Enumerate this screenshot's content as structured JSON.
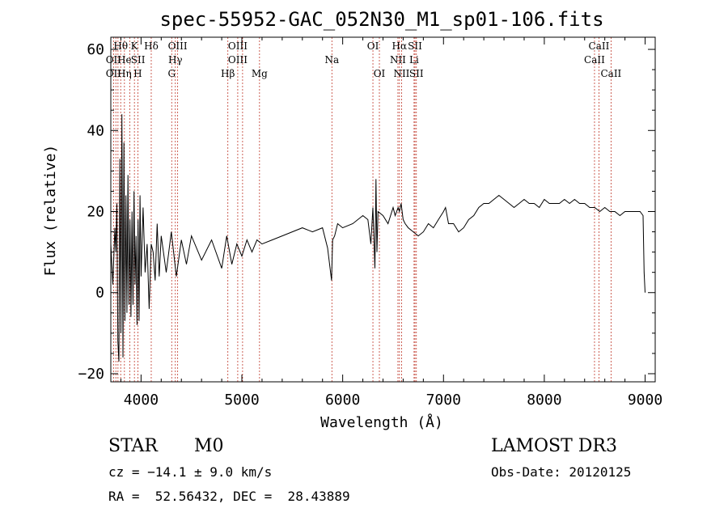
{
  "chart_data": {
    "type": "line",
    "title": "spec-55952-GAC_052N30_M1_sp01-106.fits",
    "xlabel": "Wavelength (Å)",
    "ylabel": "Flux (relative)",
    "xlim": [
      3700,
      9100
    ],
    "ylim": [
      -22,
      63
    ],
    "xticks": [
      4000,
      5000,
      6000,
      7000,
      8000,
      9000
    ],
    "yticks": [
      -20,
      0,
      20,
      40,
      60
    ],
    "xtick_labels": [
      "4000",
      "5000",
      "6000",
      "7000",
      "8000",
      "9000"
    ],
    "ytick_labels": [
      "−20",
      "0",
      "20",
      "40",
      "60"
    ],
    "series": [
      {
        "name": "flux",
        "x": [
          3700,
          3720,
          3740,
          3750,
          3760,
          3770,
          3780,
          3790,
          3800,
          3810,
          3820,
          3830,
          3840,
          3850,
          3860,
          3870,
          3880,
          3890,
          3900,
          3910,
          3920,
          3930,
          3940,
          3950,
          3960,
          3970,
          3980,
          3990,
          4000,
          4020,
          4040,
          4060,
          4080,
          4100,
          4120,
          4140,
          4160,
          4180,
          4200,
          4250,
          4300,
          4350,
          4400,
          4450,
          4500,
          4600,
          4700,
          4800,
          4850,
          4900,
          4950,
          5000,
          5050,
          5100,
          5150,
          5200,
          5300,
          5400,
          5500,
          5600,
          5700,
          5800,
          5850,
          5890,
          5900,
          5920,
          5950,
          6000,
          6100,
          6200,
          6250,
          6280,
          6300,
          6320,
          6330,
          6340,
          6350,
          6400,
          6450,
          6500,
          6520,
          6550,
          6563,
          6580,
          6600,
          6620,
          6650,
          6700,
          6750,
          6800,
          6850,
          6900,
          6950,
          7000,
          7020,
          7050,
          7100,
          7150,
          7200,
          7250,
          7300,
          7350,
          7400,
          7450,
          7500,
          7550,
          7600,
          7650,
          7700,
          7750,
          7800,
          7850,
          7900,
          7950,
          8000,
          8050,
          8100,
          8150,
          8200,
          8250,
          8300,
          8350,
          8400,
          8450,
          8500,
          8550,
          8600,
          8650,
          8700,
          8750,
          8800,
          8850,
          8900,
          8950,
          8980,
          8990,
          9000
        ],
        "values": [
          12,
          2,
          16,
          10,
          22,
          -12,
          -17,
          33,
          -10,
          44,
          -16,
          37,
          -7,
          24,
          -5,
          29,
          -3,
          18,
          -6,
          20,
          -3,
          25,
          2,
          14,
          -8,
          18,
          -7,
          24,
          4,
          21,
          5,
          12,
          -4,
          12,
          10,
          3,
          17,
          4,
          14,
          5,
          15,
          4,
          13,
          7,
          14,
          8,
          13,
          6,
          14,
          7,
          12,
          9,
          13,
          10,
          13,
          12,
          13,
          14,
          15,
          16,
          15,
          16,
          11,
          3,
          13,
          14,
          17,
          16,
          17,
          19,
          18,
          12,
          21,
          6,
          28,
          10,
          20,
          19,
          17,
          21,
          19,
          21,
          20,
          22,
          18,
          17,
          16,
          15,
          14,
          15,
          17,
          16,
          18,
          20,
          21,
          17,
          17,
          15,
          16,
          18,
          19,
          21,
          22,
          22,
          23,
          24,
          23,
          22,
          21,
          22,
          23,
          22,
          22,
          21,
          23,
          22,
          22,
          22,
          23,
          22,
          23,
          22,
          22,
          21,
          21,
          20,
          21,
          20,
          20,
          19,
          20,
          20,
          20,
          20,
          19,
          5,
          0
        ]
      }
    ],
    "line_markers": [
      {
        "label": "OII",
        "wavelength": 3727,
        "row": 2
      },
      {
        "label": "OII",
        "wavelength": 3727,
        "row": 3
      },
      {
        "label": "Hθ",
        "wavelength": 3798,
        "row": 1
      },
      {
        "label": "He",
        "wavelength": 3835,
        "row": 2
      },
      {
        "label": "Hη",
        "wavelength": 3835,
        "row": 3
      },
      {
        "label": "K",
        "wavelength": 3934,
        "row": 1
      },
      {
        "label": "SII",
        "wavelength": 3970,
        "row": 2
      },
      {
        "label": "H",
        "wavelength": 3968,
        "row": 3
      },
      {
        "label": "Hδ",
        "wavelength": 4101,
        "row": 1
      },
      {
        "label": "OIII",
        "wavelength": 4363,
        "row": 1
      },
      {
        "label": "Hγ",
        "wavelength": 4340,
        "row": 2
      },
      {
        "label": "G",
        "wavelength": 4304,
        "row": 3
      },
      {
        "label": "OIII",
        "wavelength": 4959,
        "row": 1
      },
      {
        "label": "OIII",
        "wavelength": 4959,
        "row": 2
      },
      {
        "label": "Hβ",
        "wavelength": 4861,
        "row": 3
      },
      {
        "label": "Mg",
        "wavelength": 5175,
        "row": 3
      },
      {
        "label": "Na",
        "wavelength": 5893,
        "row": 2
      },
      {
        "label": "OI",
        "wavelength": 6300,
        "row": 1
      },
      {
        "label": "OI",
        "wavelength": 6364,
        "row": 3
      },
      {
        "label": "Hα",
        "wavelength": 6563,
        "row": 1
      },
      {
        "label": "SII",
        "wavelength": 6717,
        "row": 1
      },
      {
        "label": "NII",
        "wavelength": 6548,
        "row": 2
      },
      {
        "label": "Li",
        "wavelength": 6708,
        "row": 2
      },
      {
        "label": "NII",
        "wavelength": 6584,
        "row": 3
      },
      {
        "label": "SII",
        "wavelength": 6731,
        "row": 3
      },
      {
        "label": "CaII",
        "wavelength": 8542,
        "row": 1
      },
      {
        "label": "CaII",
        "wavelength": 8498,
        "row": 2
      },
      {
        "label": "CaII",
        "wavelength": 8662,
        "row": 3
      }
    ],
    "marker_lines": [
      3727,
      3750,
      3771,
      3798,
      3835,
      3889,
      3934,
      3968,
      4101,
      4304,
      4340,
      4363,
      4861,
      4959,
      5007,
      5175,
      5893,
      6300,
      6364,
      6548,
      6563,
      6584,
      6708,
      6717,
      6731,
      8498,
      8542,
      8662
    ]
  },
  "info": {
    "object_class": "STAR",
    "subclass": "M0",
    "survey": "LAMOST DR3",
    "redshift": "cz = −14.1 ± 9.0 km/s",
    "obs_date": "Obs-Date: 20120125",
    "coords": "RA =  52.56432, DEC =  28.43889"
  },
  "colors": {
    "marker": "#c0392b",
    "line": "#000000"
  }
}
